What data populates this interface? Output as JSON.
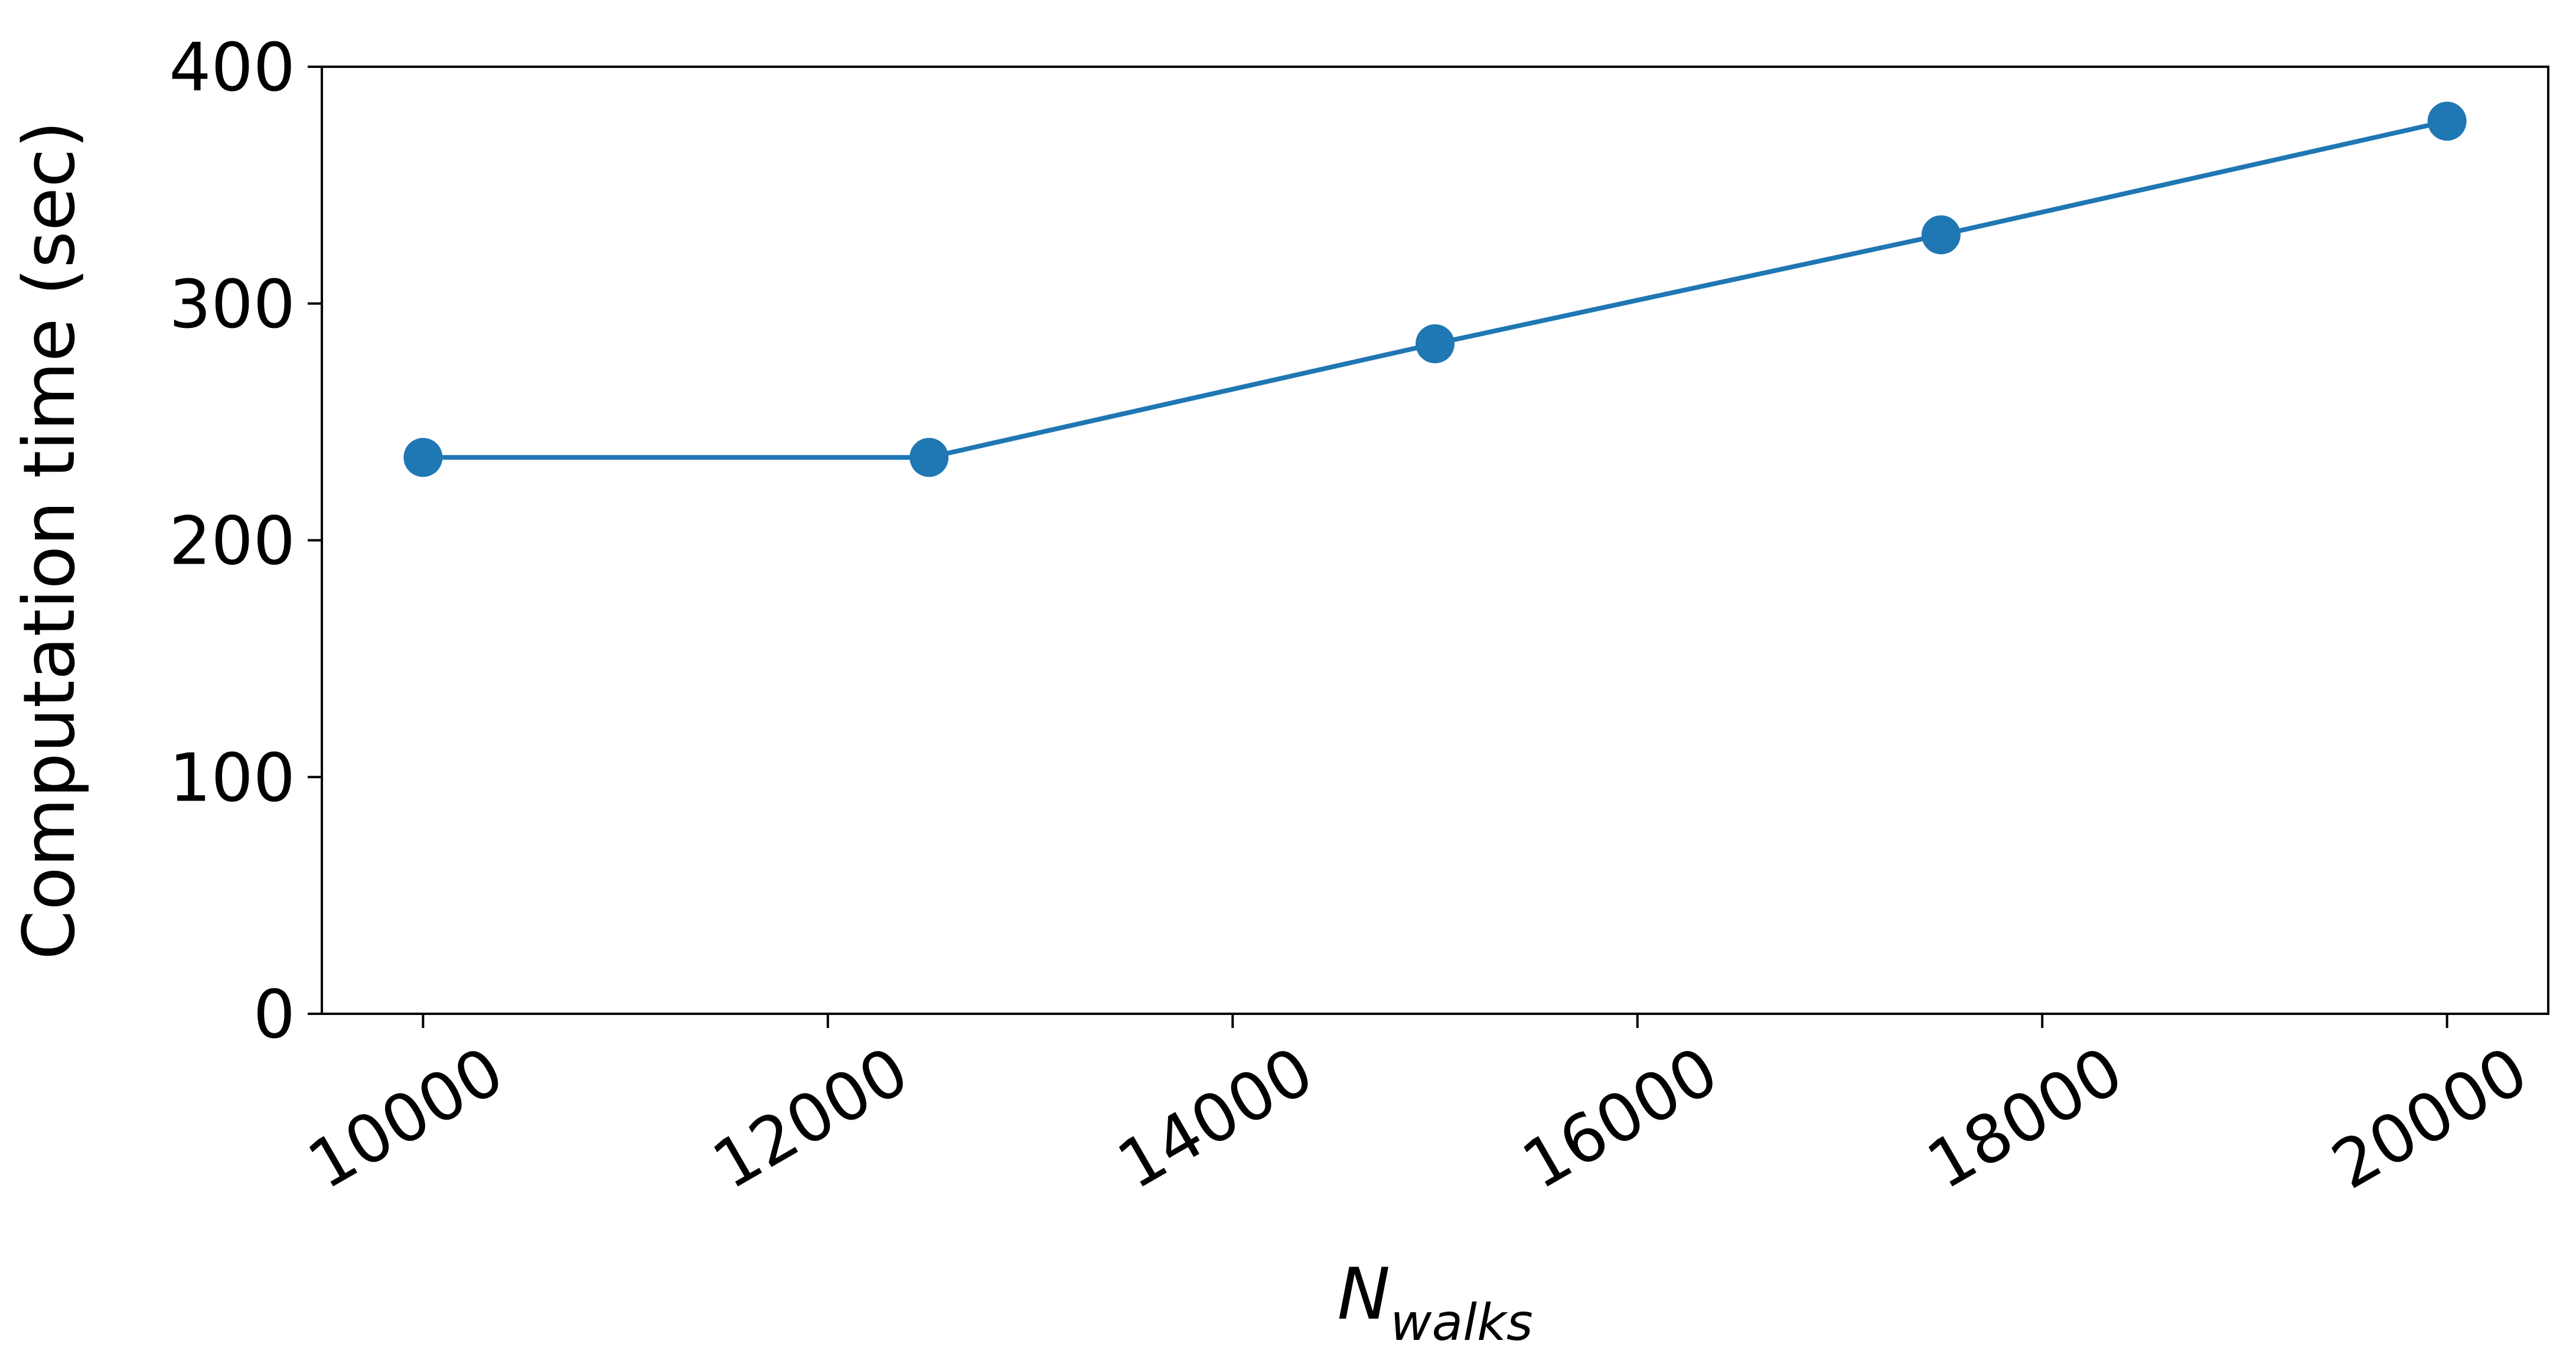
{
  "chart_data": {
    "type": "line",
    "title": "",
    "xlabel_main": "N",
    "xlabel_sub": "walks",
    "ylabel": "Computation time (sec)",
    "xlim": [
      9500,
      20500
    ],
    "ylim": [
      0,
      400
    ],
    "xticks": [
      10000,
      12000,
      14000,
      16000,
      18000,
      20000
    ],
    "yticks": [
      0,
      100,
      200,
      300,
      400
    ],
    "grid": false,
    "series": [
      {
        "color": "#1f77b4",
        "marker": "circle",
        "x": [
          10000,
          12500,
          15000,
          17500,
          20000
        ],
        "y": [
          235,
          235,
          283,
          329,
          377
        ]
      }
    ]
  }
}
